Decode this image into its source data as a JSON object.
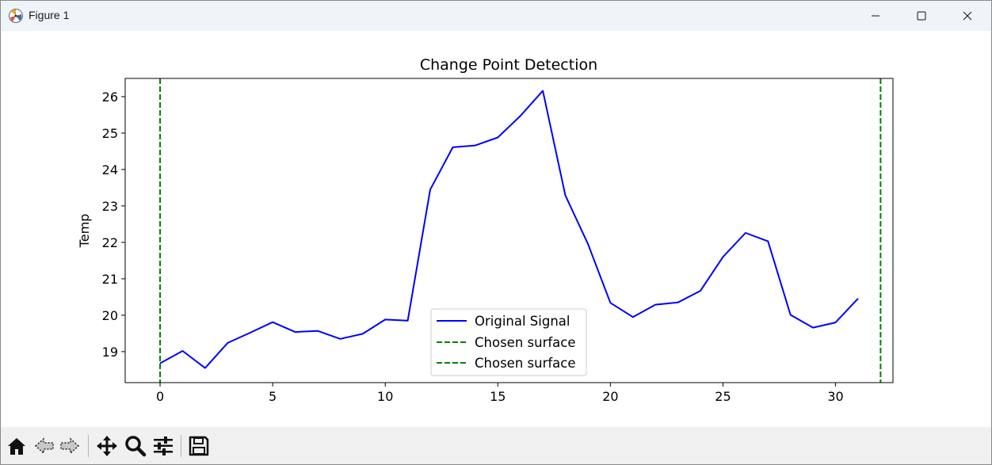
{
  "window": {
    "title": "Figure 1"
  },
  "toolbar": {
    "buttons": [
      "home-icon",
      "back-icon",
      "forward-icon",
      "pan-icon",
      "zoom-icon",
      "configure-subplots-icon",
      "save-icon"
    ]
  },
  "colors": {
    "signal": "#0000ff",
    "surface": "#008000",
    "titlebar": "#eff4f9",
    "toolbar": "#f0f0f0"
  },
  "chart_data": {
    "type": "line",
    "title": "Change Point Detection",
    "xlabel": "",
    "ylabel": "Temp",
    "xlim": [
      -1.55,
      32.55
    ],
    "ylim": [
      18.15,
      26.5
    ],
    "xticks": [
      0,
      5,
      10,
      15,
      20,
      25,
      30
    ],
    "yticks": [
      19,
      20,
      21,
      22,
      23,
      24,
      25,
      26
    ],
    "grid": false,
    "legend_position": "lower-center",
    "series": [
      {
        "name": "Original Signal",
        "color": "#0000ff",
        "style": "solid",
        "x": [
          0,
          1,
          2,
          3,
          4,
          5,
          6,
          7,
          8,
          9,
          10,
          11,
          12,
          13,
          14,
          15,
          16,
          17,
          18,
          19,
          20,
          21,
          22,
          23,
          24,
          25,
          26,
          27,
          28,
          29,
          30,
          31
        ],
        "y": [
          18.68,
          19.02,
          18.55,
          19.24,
          19.52,
          19.81,
          19.54,
          19.57,
          19.35,
          19.49,
          19.88,
          19.85,
          23.45,
          24.61,
          24.66,
          24.88,
          25.47,
          26.16,
          23.29,
          21.96,
          20.34,
          19.95,
          20.29,
          20.35,
          20.67,
          21.6,
          22.26,
          22.03,
          20.01,
          19.66,
          19.8,
          20.46
        ]
      }
    ],
    "vlines": [
      {
        "name": "Chosen surface",
        "x": 0,
        "color": "#008000",
        "style": "dashed"
      },
      {
        "name": "Chosen surface",
        "x": 32,
        "color": "#008000",
        "style": "dashed"
      }
    ]
  }
}
